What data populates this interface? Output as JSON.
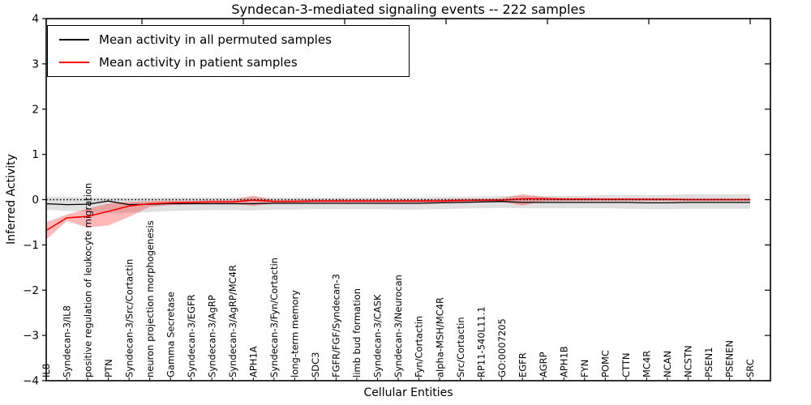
{
  "figure": {
    "title": "Syndecan-3-mediated signaling events -- 222 samples",
    "x_axis_label": "Cellular Entities",
    "y_axis_label": "Inferred Activity"
  },
  "legend": {
    "items": [
      {
        "label": "Mean activity in all permuted samples",
        "color": "#000000"
      },
      {
        "label": "Mean activity in patient samples",
        "color": "#ff0000"
      }
    ]
  },
  "chart_data": {
    "type": "line",
    "title": "Syndecan-3-mediated signaling events -- 222 samples",
    "xlabel": "Cellular Entities",
    "ylabel": "Inferred Activity",
    "ylim": [
      -4,
      4
    ],
    "ytick_labels": [
      "4",
      "3",
      "2",
      "1",
      "0",
      "−1",
      "−2",
      "−3",
      "−4"
    ],
    "ytick_values": [
      4,
      3,
      2,
      1,
      0,
      -1,
      -2,
      -3,
      -4
    ],
    "grid": false,
    "legend_position": "upper left",
    "zero_line": {
      "value": 0,
      "style": "dotted",
      "color": "#000000"
    },
    "categories": [
      "IL8",
      "Syndecan-3/IL8",
      "positive regulation of leukocyte migration",
      "PTN",
      "Syndecan-3/Src/Cortactin",
      "neuron projection morphogenesis",
      "Gamma Secretase",
      "Syndecan-3/EGFR",
      "Syndecan-3/AgRP",
      "Syndecan-3/AgRP/MC4R",
      "APH1A",
      "Syndecan-3/Fyn/Cortactin",
      "long-term memory",
      "SDC3",
      "FGFR/FGF/Syndecan-3",
      "limb bud formation",
      "Syndecan-3/CASK",
      "Syndecan-3/Neurocan",
      "Fyn/Cortactin",
      "alpha-MSH/MC4R",
      "Src/Cortactin",
      "RP11-540L11.1",
      "GO:0007205",
      "EGFR",
      "AGRP",
      "APH1B",
      "FYN",
      "POMC",
      "CTTN",
      "MC4R",
      "NCAN",
      "NCSTN",
      "PSEN1",
      "PSENEN",
      "SRC"
    ],
    "series": [
      {
        "name": "Mean activity in all permuted samples",
        "color": "#000000",
        "band_color": "rgba(0,0,0,0.12)",
        "values": [
          -0.09,
          -0.11,
          -0.1,
          -0.03,
          -0.11,
          -0.1,
          -0.09,
          -0.09,
          -0.09,
          -0.09,
          -0.09,
          -0.08,
          -0.08,
          -0.08,
          -0.08,
          -0.08,
          -0.08,
          -0.08,
          -0.08,
          -0.07,
          -0.06,
          -0.05,
          -0.04,
          -0.06,
          -0.06,
          -0.06,
          -0.06,
          -0.06,
          -0.06,
          -0.07,
          -0.07,
          -0.06,
          -0.06,
          -0.06,
          -0.06
        ],
        "band_upper": [
          0.07,
          0.06,
          0.05,
          0.05,
          0.04,
          0.05,
          0.05,
          0.05,
          0.05,
          0.05,
          0.06,
          0.05,
          0.05,
          0.05,
          0.05,
          0.05,
          0.05,
          0.05,
          0.05,
          0.06,
          0.06,
          0.07,
          0.08,
          0.08,
          0.08,
          0.08,
          0.09,
          0.1,
          0.1,
          0.1,
          0.11,
          0.12,
          0.12,
          0.12,
          0.13
        ],
        "band_lower": [
          -0.22,
          -0.25,
          -0.27,
          -0.3,
          -0.29,
          -0.27,
          -0.25,
          -0.24,
          -0.23,
          -0.23,
          -0.24,
          -0.22,
          -0.22,
          -0.21,
          -0.21,
          -0.21,
          -0.21,
          -0.22,
          -0.22,
          -0.21,
          -0.2,
          -0.19,
          -0.18,
          -0.19,
          -0.19,
          -0.19,
          -0.19,
          -0.19,
          -0.2,
          -0.21,
          -0.21,
          -0.2,
          -0.2,
          -0.2,
          -0.2
        ]
      },
      {
        "name": "Mean activity in patient samples",
        "color": "#ff0000",
        "band_color": "rgba(255,0,0,0.28)",
        "values": [
          -0.68,
          -0.4,
          -0.37,
          -0.26,
          -0.14,
          -0.09,
          -0.07,
          -0.06,
          -0.05,
          -0.05,
          -0.01,
          -0.04,
          -0.04,
          -0.03,
          -0.03,
          -0.03,
          -0.03,
          -0.03,
          -0.03,
          -0.03,
          -0.02,
          -0.01,
          -0.01,
          0.02,
          0.02,
          0.01,
          0.01,
          0.01,
          0.01,
          0.01,
          0.01,
          0.0,
          0.0,
          0.0,
          0.0
        ],
        "band_upper": [
          -0.5,
          -0.33,
          -0.2,
          -0.08,
          -0.05,
          -0.03,
          -0.02,
          -0.02,
          -0.01,
          -0.01,
          0.09,
          -0.01,
          0.0,
          0.0,
          0.0,
          0.0,
          0.0,
          0.0,
          0.0,
          0.01,
          0.02,
          0.02,
          0.03,
          0.12,
          0.06,
          0.04,
          0.04,
          0.03,
          0.03,
          0.03,
          0.03,
          0.03,
          0.03,
          0.03,
          0.03
        ],
        "band_lower": [
          -0.88,
          -0.47,
          -0.62,
          -0.57,
          -0.38,
          -0.16,
          -0.12,
          -0.1,
          -0.09,
          -0.09,
          -0.14,
          -0.08,
          -0.08,
          -0.07,
          -0.07,
          -0.07,
          -0.07,
          -0.08,
          -0.07,
          -0.07,
          -0.06,
          -0.05,
          -0.05,
          -0.13,
          -0.04,
          -0.03,
          -0.03,
          -0.03,
          -0.03,
          -0.03,
          -0.03,
          -0.03,
          -0.03,
          -0.03,
          -0.03
        ]
      }
    ]
  }
}
